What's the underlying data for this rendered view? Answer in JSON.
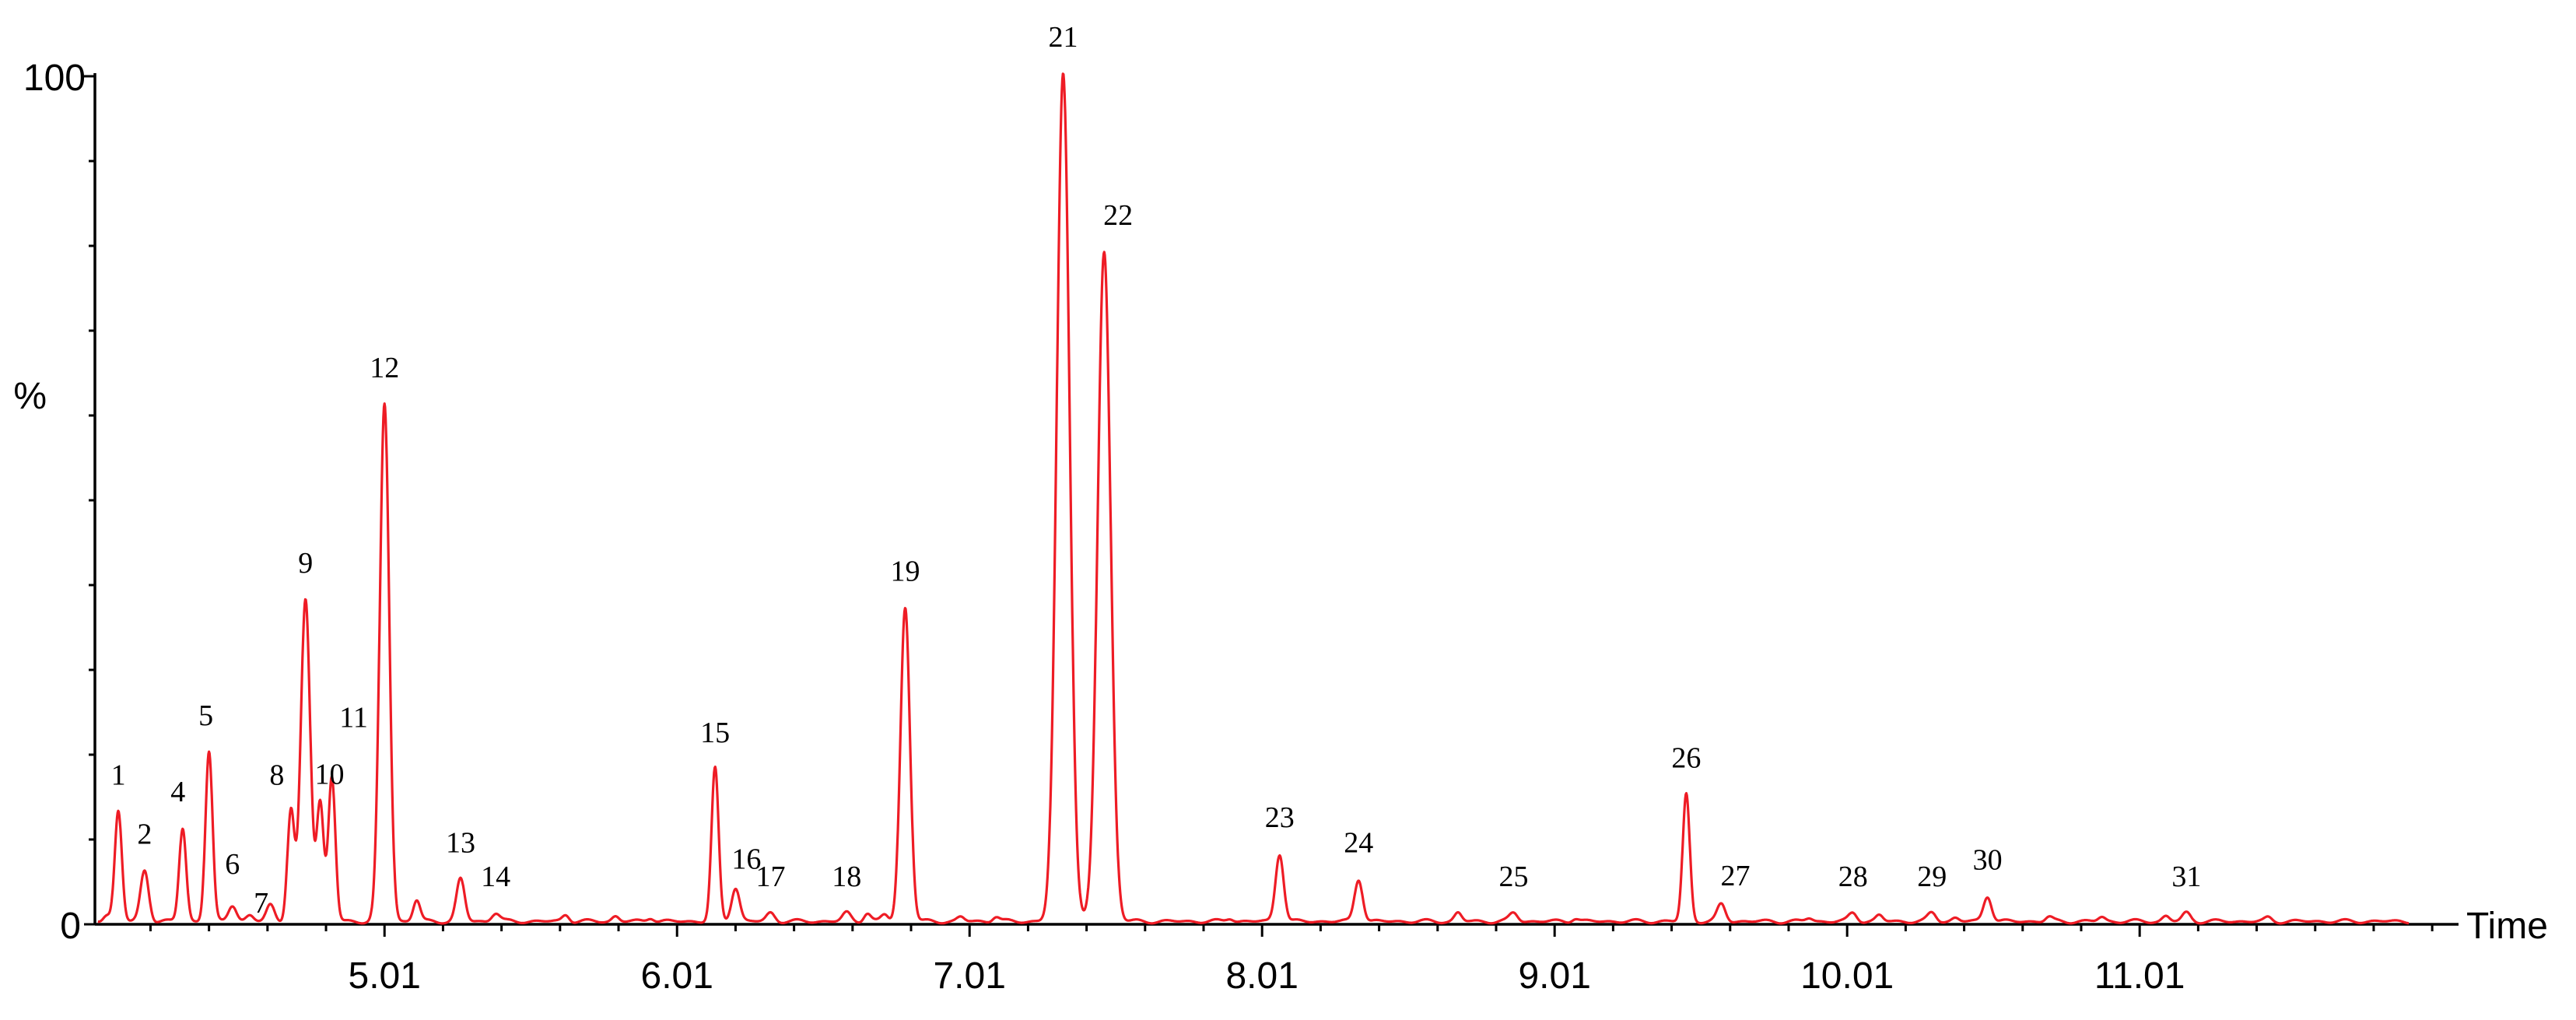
{
  "chart_data": {
    "type": "line",
    "xlabel": "Time",
    "ylabel": "%",
    "ylim": [
      0,
      100
    ],
    "xlim": [
      4.02,
      12.1
    ],
    "grid": false,
    "legend": "none",
    "line_color": "#ee1c25",
    "y_ticks": [
      "0",
      "%",
      "100"
    ],
    "x_ticks": [
      {
        "value": 5.01,
        "label": "5.01"
      },
      {
        "value": 6.01,
        "label": "6.01"
      },
      {
        "value": 7.01,
        "label": "7.01"
      },
      {
        "value": 8.01,
        "label": "8.01"
      },
      {
        "value": 9.01,
        "label": "9.01"
      },
      {
        "value": 10.01,
        "label": "10.01"
      },
      {
        "value": 11.01,
        "label": "11.01"
      }
    ],
    "peaks": [
      {
        "label": "1",
        "x": 4.1,
        "y": 13
      },
      {
        "label": "2",
        "x": 4.19,
        "y": 6
      },
      {
        "label": "4",
        "x": 4.32,
        "y": 11
      },
      {
        "label": "5",
        "x": 4.41,
        "y": 20
      },
      {
        "label": "6",
        "x": 4.49,
        "y": 2
      },
      {
        "label": "7",
        "x": 4.62,
        "y": 2
      },
      {
        "label": "8",
        "x": 4.69,
        "y": 13
      },
      {
        "label": "9",
        "x": 4.74,
        "y": 38
      },
      {
        "label": "10",
        "x": 4.79,
        "y": 14
      },
      {
        "label": "11",
        "x": 4.83,
        "y": 17
      },
      {
        "label": "12",
        "x": 5.01,
        "y": 61
      },
      {
        "label": "13",
        "x": 5.27,
        "y": 5
      },
      {
        "label": "14",
        "x": 5.39,
        "y": 1
      },
      {
        "label": "15",
        "x": 6.14,
        "y": 18
      },
      {
        "label": "16",
        "x": 6.21,
        "y": 4
      },
      {
        "label": "17",
        "x": 6.33,
        "y": 1
      },
      {
        "label": "18",
        "x": 6.59,
        "y": 1
      },
      {
        "label": "19",
        "x": 6.79,
        "y": 37
      },
      {
        "label": "21",
        "x": 7.33,
        "y": 100
      },
      {
        "label": "22",
        "x": 7.47,
        "y": 79
      },
      {
        "label": "23",
        "x": 8.07,
        "y": 8
      },
      {
        "label": "24",
        "x": 8.34,
        "y": 5
      },
      {
        "label": "25",
        "x": 8.87,
        "y": 1
      },
      {
        "label": "26",
        "x": 9.46,
        "y": 15
      },
      {
        "label": "27",
        "x": 9.58,
        "y": 2
      },
      {
        "label": "28",
        "x": 10.03,
        "y": 1
      },
      {
        "label": "29",
        "x": 10.3,
        "y": 1
      },
      {
        "label": "30",
        "x": 10.49,
        "y": 3
      },
      {
        "label": "31",
        "x": 11.17,
        "y": 1
      }
    ]
  }
}
